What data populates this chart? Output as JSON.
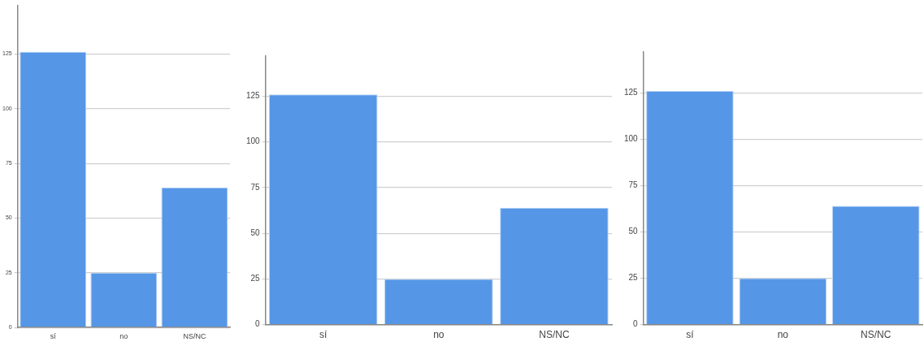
{
  "chart_data": [
    {
      "type": "bar",
      "categories": [
        "sí",
        "no",
        "NS/NC"
      ],
      "values": [
        126,
        25,
        64
      ],
      "color": "#5596e6",
      "ylim": [
        0,
        147
      ],
      "yticks": [
        0,
        25,
        50,
        75,
        100,
        125
      ],
      "grid": "y",
      "legend": false
    },
    {
      "type": "bar",
      "categories": [
        "sí",
        "no",
        "NS/NC"
      ],
      "values": [
        126,
        25,
        64
      ],
      "color": "#5596e6",
      "ylim": [
        0,
        147
      ],
      "yticks": [
        0,
        25,
        50,
        75,
        100,
        125
      ],
      "grid": "y",
      "legend": false
    },
    {
      "type": "bar",
      "categories": [
        "sí",
        "no",
        "NS/NC"
      ],
      "values": [
        126,
        25,
        64
      ],
      "color": "#5596e6",
      "ylim": [
        0,
        147
      ],
      "yticks": [
        0,
        25,
        50,
        75,
        100,
        125
      ],
      "grid": "y",
      "legend": false
    }
  ]
}
